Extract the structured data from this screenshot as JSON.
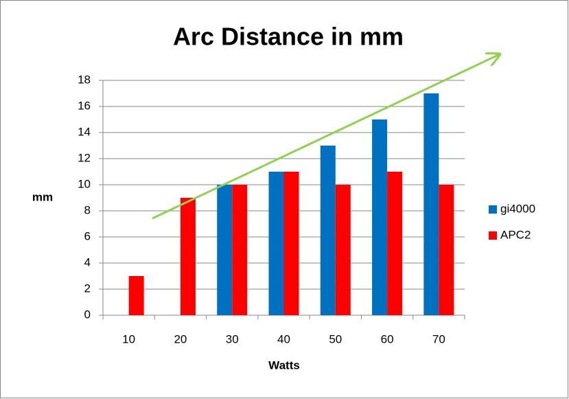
{
  "chart_data": {
    "type": "bar",
    "title": "Arc Distance in mm",
    "x_label": "Watts",
    "y_label": "mm",
    "categories": [
      "10",
      "20",
      "30",
      "40",
      "50",
      "60",
      "70"
    ],
    "series": [
      {
        "name": "gi4000",
        "color": "#0070c0",
        "values": [
          0,
          0,
          10,
          11,
          13,
          15,
          17
        ]
      },
      {
        "name": "APC2",
        "color": "#ff0000",
        "values": [
          3,
          9,
          10,
          11,
          10,
          11,
          10
        ]
      }
    ],
    "ylim": [
      0,
      18
    ],
    "yticks": [
      0,
      2,
      4,
      6,
      8,
      10,
      12,
      14,
      16,
      18
    ],
    "grid": true,
    "legend": "right"
  }
}
